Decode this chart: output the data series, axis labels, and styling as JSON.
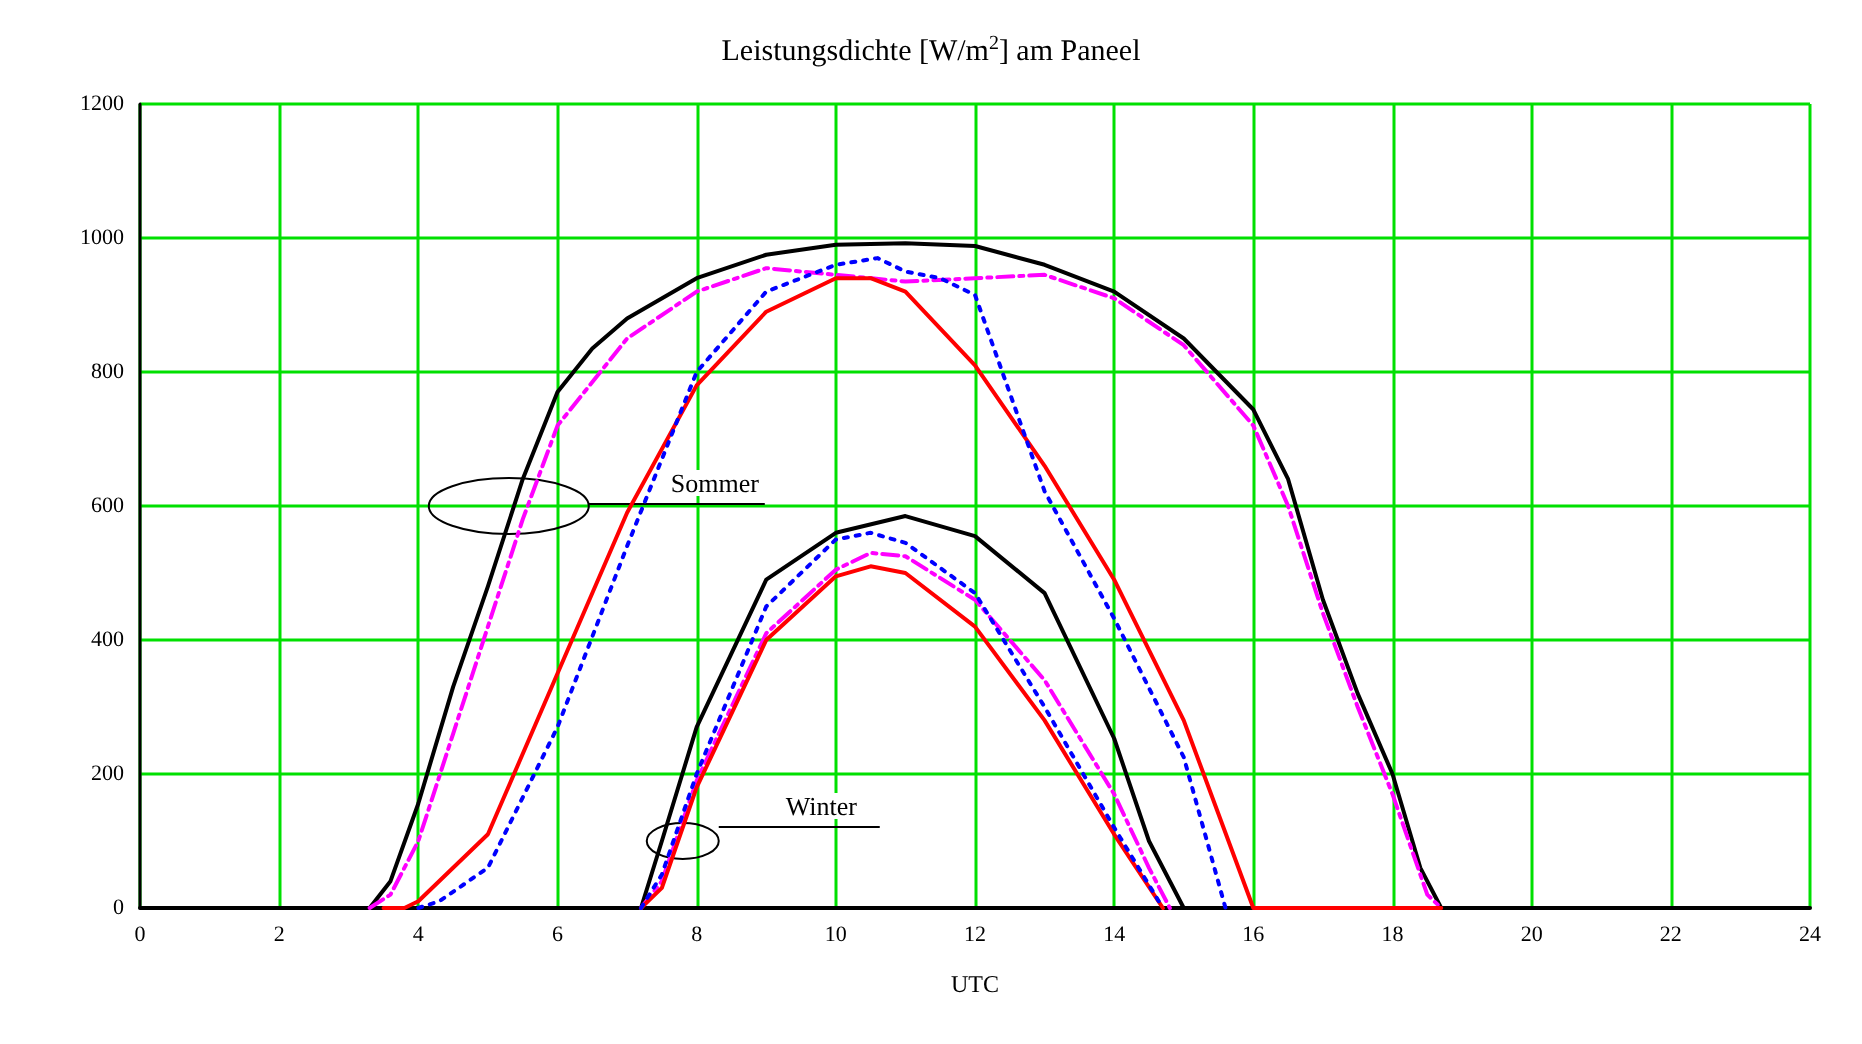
{
  "chart_data": {
    "type": "line",
    "title": "Leistungsdichte [W/m$^{2}$] am Paneel",
    "xlabel": "UTC",
    "xlim": [
      0,
      24
    ],
    "xticks": [
      0,
      2,
      4,
      6,
      8,
      10,
      12,
      14,
      16,
      18,
      20,
      22,
      24
    ],
    "ylim": [
      0,
      1200
    ],
    "yticks": [
      0,
      200,
      400,
      600,
      800,
      1000,
      1200
    ],
    "grid": true,
    "marker": "none",
    "annotations": [
      "Sommer",
      "Winter"
    ],
    "series": [
      {
        "color": "#000000",
        "line_style": "solid",
        "x": [
          3.0,
          3.3,
          3.6,
          4,
          4.5,
          5,
          5.5,
          6,
          6.5,
          7,
          8,
          9,
          10,
          11,
          12,
          13,
          14,
          15,
          16,
          16.5,
          17,
          17.5,
          18,
          18.4,
          18.7,
          18.9
        ],
        "values": [
          0,
          0,
          40,
          156,
          330,
          480,
          640,
          770,
          835,
          880,
          940,
          975,
          990,
          992,
          988,
          960,
          920,
          850,
          744,
          640,
          460,
          320,
          200,
          60,
          0,
          0
        ]
      },
      {
        "color": "#ff00ff",
        "line_style": "dashed",
        "x": [
          3.3,
          3.6,
          4,
          4.5,
          5,
          5.5,
          6,
          7,
          8,
          9,
          10,
          11,
          12,
          13,
          14,
          15,
          16,
          16.5,
          17,
          17.5,
          18,
          18.5,
          18.7
        ],
        "values": [
          0,
          20,
          100,
          260,
          420,
          580,
          720,
          850,
          920,
          955,
          945,
          935,
          940,
          945,
          910,
          840,
          720,
          600,
          440,
          300,
          170,
          20,
          0
        ]
      },
      {
        "color": "#ff0000",
        "line_style": "solid",
        "x": [
          3.5,
          3.8,
          4,
          5,
          6,
          7,
          8,
          9,
          10,
          10.5,
          11,
          12,
          13,
          14,
          15,
          16,
          18.7
        ],
        "values": [
          0,
          0,
          10,
          110,
          350,
          590,
          780,
          890,
          940,
          940,
          920,
          810,
          660,
          490,
          280,
          0,
          0
        ]
      },
      {
        "color": "#0000ff",
        "line_style": "dotted",
        "x": [
          4.0,
          4.3,
          5,
          6,
          7,
          8,
          9,
          10,
          10.6,
          11,
          11.5,
          12,
          13,
          14,
          15,
          15.6
        ],
        "values": [
          0,
          10,
          60,
          270,
          540,
          800,
          920,
          960,
          970,
          950,
          940,
          915,
          622,
          432,
          225,
          0
        ]
      },
      {
        "color": "#000000",
        "line_style": "solid",
        "x": [
          6.8,
          7.2,
          7.5,
          8,
          9,
          10,
          11,
          12,
          13,
          14,
          14.5,
          15.0,
          15.2
        ],
        "values": [
          0,
          0,
          100,
          270,
          490,
          560,
          585,
          555,
          470,
          253,
          100,
          0,
          0
        ]
      },
      {
        "color": "#ff00ff",
        "line_style": "dashed",
        "x": [
          7.2,
          7.5,
          8,
          9,
          10,
          10.5,
          11,
          12,
          13,
          14,
          14.5,
          14.8
        ],
        "values": [
          0,
          40,
          190,
          410,
          505,
          530,
          525,
          460,
          340,
          170,
          60,
          0
        ]
      },
      {
        "color": "#ff0000",
        "line_style": "solid",
        "x": [
          7.2,
          7.5,
          8,
          9,
          10,
          10.5,
          11,
          12,
          13,
          14,
          14.7
        ],
        "values": [
          0,
          30,
          180,
          400,
          495,
          510,
          500,
          420,
          280,
          110,
          0
        ]
      },
      {
        "color": "#0000ff",
        "line_style": "dotted",
        "x": [
          7.2,
          7.5,
          8,
          9,
          10,
          10.5,
          11,
          12,
          13,
          14,
          14.7
        ],
        "values": [
          0,
          50,
          200,
          450,
          550,
          560,
          545,
          470,
          300,
          120,
          0
        ]
      }
    ]
  }
}
